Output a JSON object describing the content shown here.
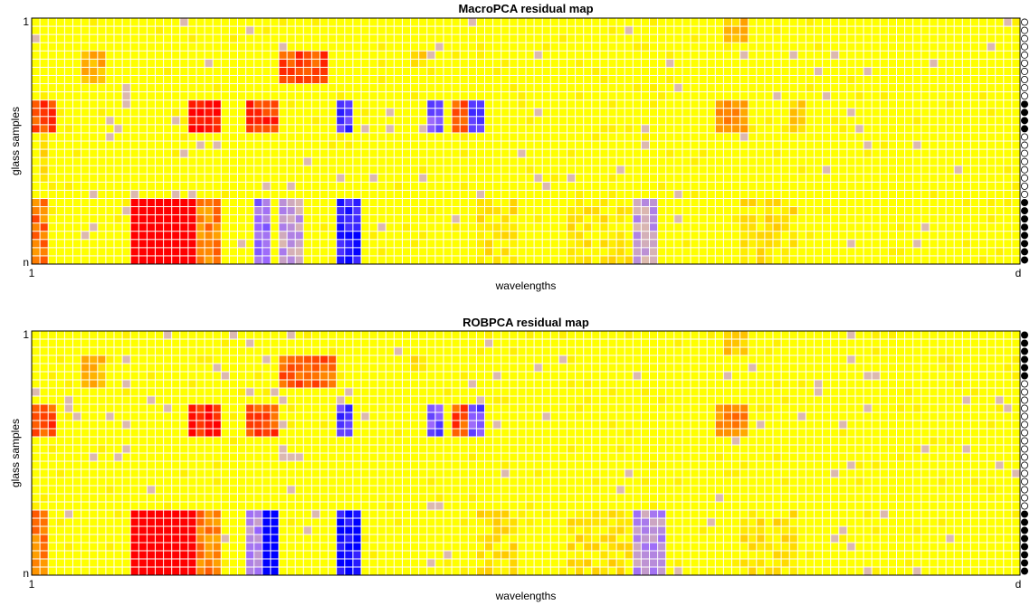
{
  "colors": {
    "regular": "#ffff00",
    "positive_moderate": "#ff9900",
    "positive_large": "#ff0000",
    "negative_moderate": "#9966ff",
    "negative_large": "#0000ff",
    "grid": "#ffffff",
    "flag_outlier": "#000000",
    "flag_regular": "#ffffff"
  },
  "chart_data": [
    {
      "type": "heatmap",
      "title": "MacroPCA residual map",
      "xlabel": "wavelengths",
      "ylabel": "glass samples",
      "x_ticks": [
        "1",
        "d"
      ],
      "y_ticks": [
        "1",
        "n"
      ],
      "n_rows": 30,
      "n_cols": 120,
      "blocks": [
        {
          "rows": [
            0,
            2
          ],
          "cols": [
            84,
            86
          ],
          "level": 0.35
        },
        {
          "rows": [
            4,
            7
          ],
          "cols": [
            6,
            8
          ],
          "level": 0.4
        },
        {
          "rows": [
            4,
            7
          ],
          "cols": [
            30,
            35
          ],
          "level": 0.7
        },
        {
          "rows": [
            4,
            5
          ],
          "cols": [
            46,
            47
          ],
          "level": 0.25
        },
        {
          "rows": [
            10,
            13
          ],
          "cols": [
            0,
            2
          ],
          "level": 0.7
        },
        {
          "rows": [
            10,
            13
          ],
          "cols": [
            19,
            22
          ],
          "level": 0.85
        },
        {
          "rows": [
            10,
            13
          ],
          "cols": [
            26,
            29
          ],
          "level": 0.75
        },
        {
          "rows": [
            10,
            13
          ],
          "cols": [
            37,
            38
          ],
          "level": -0.7
        },
        {
          "rows": [
            10,
            13
          ],
          "cols": [
            48,
            49
          ],
          "level": -0.6
        },
        {
          "rows": [
            10,
            13
          ],
          "cols": [
            51,
            52
          ],
          "level": 0.7
        },
        {
          "rows": [
            10,
            13
          ],
          "cols": [
            53,
            54
          ],
          "level": -0.7
        },
        {
          "rows": [
            10,
            13
          ],
          "cols": [
            83,
            86
          ],
          "level": 0.55
        },
        {
          "rows": [
            10,
            13
          ],
          "cols": [
            92,
            93
          ],
          "level": 0.3
        },
        {
          "rows": [
            14,
            19
          ],
          "cols": [
            1,
            1
          ],
          "level": 0.2
        },
        {
          "rows": [
            22,
            29
          ],
          "cols": [
            0,
            1
          ],
          "level": 0.6
        },
        {
          "rows": [
            22,
            29
          ],
          "cols": [
            12,
            19
          ],
          "level": 1.0
        },
        {
          "rows": [
            22,
            29
          ],
          "cols": [
            20,
            22
          ],
          "level": 0.55
        },
        {
          "rows": [
            22,
            29
          ],
          "cols": [
            30,
            32
          ],
          "level": -0.3
        },
        {
          "rows": [
            22,
            29
          ],
          "cols": [
            37,
            39
          ],
          "level": -0.8
        },
        {
          "rows": [
            22,
            29
          ],
          "cols": [
            27,
            28
          ],
          "level": -0.5
        },
        {
          "rows": [
            22,
            29
          ],
          "cols": [
            54,
            58
          ],
          "level": 0.2
        },
        {
          "rows": [
            22,
            29
          ],
          "cols": [
            65,
            72
          ],
          "level": 0.18
        },
        {
          "rows": [
            22,
            29
          ],
          "cols": [
            73,
            75
          ],
          "level": -0.3
        },
        {
          "rows": [
            22,
            29
          ],
          "cols": [
            86,
            92
          ],
          "level": 0.2
        }
      ],
      "flags": [
        0,
        0,
        0,
        0,
        0,
        0,
        0,
        0,
        0,
        0,
        1,
        1,
        1,
        1,
        0,
        0,
        0,
        0,
        0,
        0,
        0,
        0,
        1,
        1,
        1,
        1,
        1,
        1,
        1,
        1
      ]
    },
    {
      "type": "heatmap",
      "title": "ROBPCA residual map",
      "xlabel": "wavelengths",
      "ylabel": "glass samples",
      "x_ticks": [
        "1",
        "d"
      ],
      "y_ticks": [
        "1",
        "n"
      ],
      "n_rows": 30,
      "n_cols": 120,
      "blocks": [
        {
          "rows": [
            0,
            2
          ],
          "cols": [
            84,
            86
          ],
          "level": 0.3
        },
        {
          "rows": [
            3,
            6
          ],
          "cols": [
            6,
            8
          ],
          "level": 0.35
        },
        {
          "rows": [
            3,
            6
          ],
          "cols": [
            30,
            36
          ],
          "level": 0.65
        },
        {
          "rows": [
            3,
            4
          ],
          "cols": [
            46,
            47
          ],
          "level": 0.25
        },
        {
          "rows": [
            9,
            12
          ],
          "cols": [
            0,
            2
          ],
          "level": 0.7
        },
        {
          "rows": [
            9,
            12
          ],
          "cols": [
            19,
            22
          ],
          "level": 0.85
        },
        {
          "rows": [
            9,
            12
          ],
          "cols": [
            26,
            29
          ],
          "level": 0.7
        },
        {
          "rows": [
            9,
            12
          ],
          "cols": [
            37,
            38
          ],
          "level": -0.7
        },
        {
          "rows": [
            9,
            12
          ],
          "cols": [
            48,
            49
          ],
          "level": -0.6
        },
        {
          "rows": [
            9,
            12
          ],
          "cols": [
            51,
            52
          ],
          "level": 0.7
        },
        {
          "rows": [
            9,
            12
          ],
          "cols": [
            53,
            54
          ],
          "level": -0.6
        },
        {
          "rows": [
            9,
            12
          ],
          "cols": [
            83,
            86
          ],
          "level": 0.55
        },
        {
          "rows": [
            22,
            29
          ],
          "cols": [
            0,
            1
          ],
          "level": 0.6
        },
        {
          "rows": [
            22,
            29
          ],
          "cols": [
            12,
            19
          ],
          "level": 1.0
        },
        {
          "rows": [
            22,
            29
          ],
          "cols": [
            20,
            22
          ],
          "level": 0.55
        },
        {
          "rows": [
            22,
            29
          ],
          "cols": [
            28,
            29
          ],
          "level": -1.0
        },
        {
          "rows": [
            22,
            29
          ],
          "cols": [
            26,
            27
          ],
          "level": -0.4
        },
        {
          "rows": [
            22,
            29
          ],
          "cols": [
            37,
            39
          ],
          "level": -0.85
        },
        {
          "rows": [
            22,
            29
          ],
          "cols": [
            54,
            58
          ],
          "level": 0.2
        },
        {
          "rows": [
            22,
            29
          ],
          "cols": [
            65,
            72
          ],
          "level": 0.2
        },
        {
          "rows": [
            22,
            29
          ],
          "cols": [
            73,
            76
          ],
          "level": -0.35
        },
        {
          "rows": [
            22,
            29
          ],
          "cols": [
            86,
            92
          ],
          "level": 0.2
        }
      ],
      "flags": [
        1,
        1,
        1,
        1,
        1,
        1,
        0,
        0,
        0,
        0,
        0,
        0,
        0,
        0,
        0,
        0,
        0,
        0,
        0,
        0,
        0,
        0,
        1,
        1,
        1,
        1,
        1,
        1,
        1,
        1
      ]
    }
  ]
}
